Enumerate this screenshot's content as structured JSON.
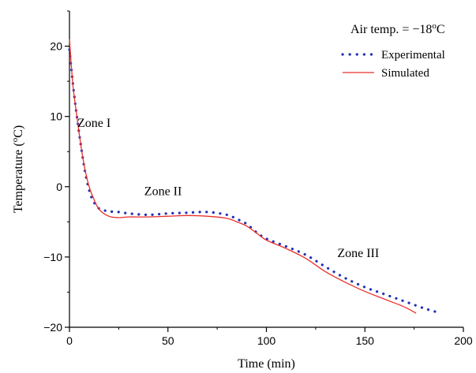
{
  "chart_data": {
    "type": "line",
    "xlabel": "Time (min)",
    "ylabel_main": "Temperature (",
    "ylabel_sup": "o",
    "ylabel_unit": "C)",
    "xlim": [
      0,
      200
    ],
    "ylim": [
      -20,
      25
    ],
    "xticks": [
      0,
      50,
      100,
      150,
      200
    ],
    "yticks": [
      -20,
      -10,
      0,
      10,
      20
    ],
    "grid": false,
    "legend_position": "top-right",
    "air_temp": {
      "prefix": "Air temp. = ",
      "value": "−18",
      "sup": "o",
      "unit": "C"
    },
    "annotations": [
      {
        "text": "Zone I",
        "x": 4,
        "y": 8.5
      },
      {
        "text": "Zone II",
        "x": 38,
        "y": -1.2
      },
      {
        "text": "Zone III",
        "x": 136,
        "y": -10
      }
    ],
    "series": [
      {
        "name": "Experimental",
        "style": "dotted",
        "color": "#1f2fb8",
        "x": [
          0,
          2,
          4,
          6,
          8,
          10,
          12,
          15,
          20,
          25,
          30,
          40,
          50,
          60,
          70,
          80,
          85,
          90,
          95,
          100,
          110,
          120,
          130,
          140,
          150,
          160,
          170,
          180,
          186
        ],
        "y": [
          19.5,
          14,
          9.5,
          5.5,
          2,
          -0.5,
          -2,
          -3.1,
          -3.5,
          -3.6,
          -3.8,
          -4,
          -3.8,
          -3.7,
          -3.6,
          -4,
          -4.6,
          -5.3,
          -6.5,
          -7.4,
          -8.5,
          -9.7,
          -11.4,
          -13,
          -14.3,
          -15.3,
          -16.3,
          -17.3,
          -17.8
        ]
      },
      {
        "name": "Simulated",
        "style": "solid",
        "color": "#e8302b",
        "x": [
          0,
          1,
          2,
          4,
          6,
          8,
          10,
          12,
          15,
          20,
          25,
          30,
          40,
          50,
          60,
          70,
          80,
          85,
          90,
          95,
          100,
          110,
          120,
          130,
          140,
          150,
          160,
          170,
          176
        ],
        "y": [
          21,
          17,
          13.8,
          9.5,
          5.5,
          2.3,
          0,
          -1.5,
          -3.2,
          -4.2,
          -4.4,
          -4.3,
          -4.3,
          -4.2,
          -4.1,
          -4.2,
          -4.5,
          -5,
          -5.6,
          -6.6,
          -7.6,
          -8.8,
          -10.2,
          -12.1,
          -13.6,
          -14.9,
          -16,
          -17.1,
          -18
        ]
      }
    ]
  }
}
